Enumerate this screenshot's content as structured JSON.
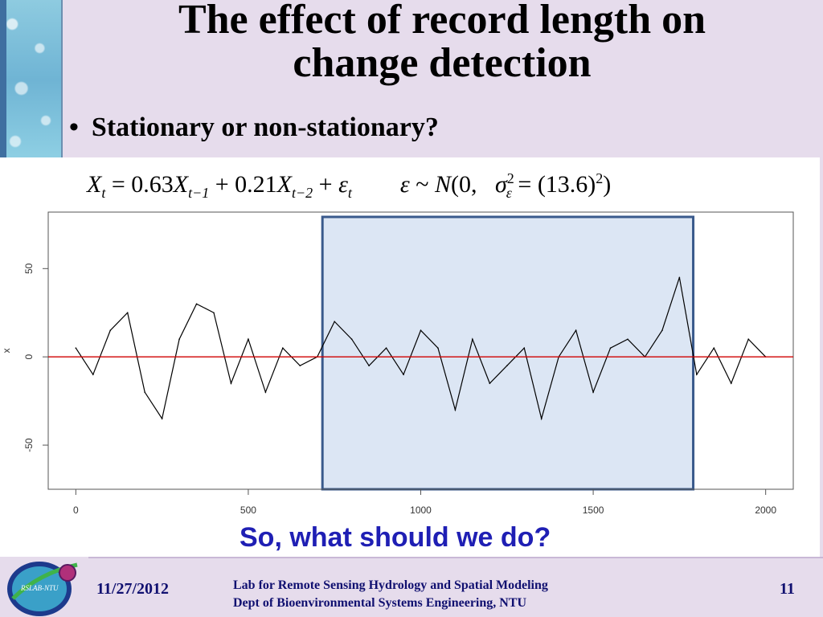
{
  "slide": {
    "title_line1": "The effect of record length on",
    "title_line2": "change detection",
    "bullet": "Stationary or non-stationary?",
    "question": "So, what should we do?",
    "footer": {
      "date": "11/27/2012",
      "lab_line1": "Lab for Remote Sensing Hydrology and Spatial Modeling",
      "lab_line2": "Dept of Bioenvironmental Systems Engineering, NTU",
      "page": "11",
      "logo_text": "RSLAB-NTU"
    },
    "equation": {
      "X": "X",
      "t": "t",
      "eq": "=",
      "c1": "0.63",
      "t1": "t−1",
      "plus": "+",
      "c2": "0.21",
      "t2": "t−2",
      "eps": "ε",
      "tilde": "~",
      "N": "N",
      "open": "(0,",
      "sigma": "σ",
      "two": "2",
      "sd": "(13.6)",
      "close": ")"
    }
  },
  "colors": {
    "background": "#e6dcec",
    "highlight_fill": "#dce6f4",
    "highlight_border": "#3a5a8c",
    "zero_line": "#d00000",
    "question": "#1f1fb4",
    "footer_text": "#101070"
  },
  "chart_data": {
    "type": "line",
    "series": [
      {
        "x": [
          0,
          50,
          100,
          150,
          200,
          250,
          300,
          350,
          400,
          450,
          500,
          550,
          600,
          650,
          700,
          750,
          800,
          850,
          900,
          950,
          1000,
          1050,
          1100,
          1150,
          1200,
          1250,
          1300,
          1350,
          1400,
          1450,
          1500,
          1550,
          1600,
          1650,
          1700,
          1750,
          1800,
          1850,
          1900,
          1950,
          2000
        ],
        "values": [
          5,
          -10,
          15,
          25,
          -20,
          -35,
          10,
          30,
          25,
          -15,
          10,
          -20,
          5,
          -5,
          0,
          20,
          10,
          -5,
          5,
          -10,
          15,
          5,
          -30,
          10,
          -15,
          -5,
          5,
          -35,
          0,
          15,
          -20,
          5,
          10,
          0,
          15,
          45,
          -10,
          5,
          -15,
          10,
          0
        ]
      }
    ],
    "xlabel": "",
    "ylabel": "x",
    "xlim": [
      -80,
      2080
    ],
    "ylim": [
      -75,
      82
    ],
    "xticks": [
      0,
      500,
      1000,
      1500,
      2000
    ],
    "yticks": [
      -50,
      0,
      50
    ],
    "reference_line": 0,
    "highlight_range": [
      715,
      1790
    ],
    "grid": false
  }
}
